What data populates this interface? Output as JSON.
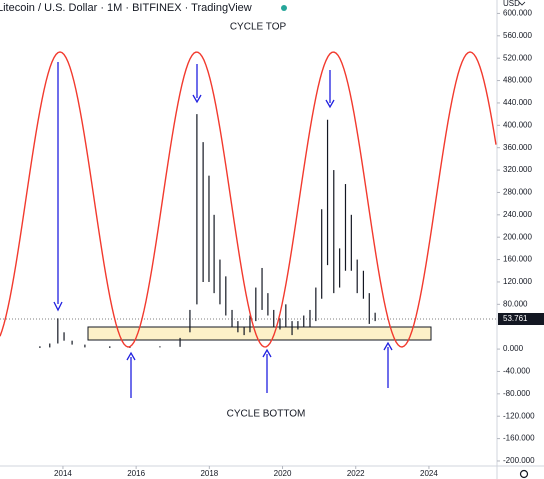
{
  "chart_data": {
    "type": "range",
    "title": "Litecoin / U.S. Dollar · 1M · BITFINEX · TradingView",
    "annotations": [
      "CYCLE TOP",
      "CYCLE BOTTOM"
    ],
    "y_axis_label": "USD",
    "color": "#131722",
    "last_price": 53.761,
    "x": [
      2013.37,
      2013.64,
      2013.86,
      2014.03,
      2014.25,
      2014.6,
      2015.28,
      2015.83,
      2016.65,
      2017.2,
      2017.47,
      2017.66,
      2017.83,
      2017.99,
      2018.13,
      2018.29,
      2018.45,
      2018.62,
      2018.78,
      2018.95,
      2019.11,
      2019.27,
      2019.44,
      2019.6,
      2019.76,
      2019.93,
      2020.09,
      2020.26,
      2020.42,
      2020.58,
      2020.75,
      2020.91,
      2021.07,
      2021.23,
      2021.4,
      2021.56,
      2021.72,
      2021.88,
      2022.04,
      2022.21,
      2022.37,
      2022.53
    ],
    "high": [
      5,
      10,
      55,
      30,
      15,
      8,
      5,
      4,
      5,
      20,
      70,
      420,
      370,
      310,
      240,
      160,
      130,
      70,
      50,
      40,
      60,
      110,
      145,
      100,
      70,
      55,
      80,
      50,
      50,
      60,
      70,
      110,
      250,
      410,
      320,
      180,
      295,
      240,
      160,
      140,
      100,
      65
    ],
    "low": [
      2,
      3,
      10,
      15,
      8,
      3,
      2,
      2,
      3,
      4,
      30,
      80,
      120,
      120,
      100,
      80,
      60,
      40,
      30,
      25,
      30,
      50,
      70,
      60,
      40,
      35,
      40,
      25,
      35,
      40,
      40,
      50,
      90,
      150,
      100,
      110,
      140,
      140,
      100,
      90,
      45,
      50
    ],
    "xlim": [
      2012.28,
      2025.86
    ],
    "xticks": [
      2014,
      2016,
      2018,
      2020,
      2022,
      2024
    ],
    "ylim": [
      -209,
      624
    ],
    "yticks": [
      {
        "value": 600,
        "label": "600.000"
      },
      {
        "value": 560,
        "label": "560.000"
      },
      {
        "value": 520,
        "label": "520.000"
      },
      {
        "value": 480,
        "label": "480.000"
      },
      {
        "value": 440,
        "label": "440.000"
      },
      {
        "value": 400,
        "label": "400.000"
      },
      {
        "value": 360,
        "label": "360.000"
      },
      {
        "value": 320,
        "label": "320.000"
      },
      {
        "value": 280,
        "label": "280.000"
      },
      {
        "value": 240,
        "label": "240.000"
      },
      {
        "value": 200,
        "label": "200.000"
      },
      {
        "value": 160,
        "label": "160.000"
      },
      {
        "value": 120,
        "label": "120.000"
      },
      {
        "value": 80,
        "label": "80.000"
      },
      {
        "value": 0,
        "label": "0.000"
      },
      {
        "value": -40,
        "label": "-40.000"
      },
      {
        "value": -80,
        "label": "-80.000"
      },
      {
        "value": -120,
        "label": "-120.000"
      },
      {
        "value": -160,
        "label": "-160.000"
      },
      {
        "value": -200,
        "label": "-200.000"
      }
    ],
    "grid": false
  }
}
